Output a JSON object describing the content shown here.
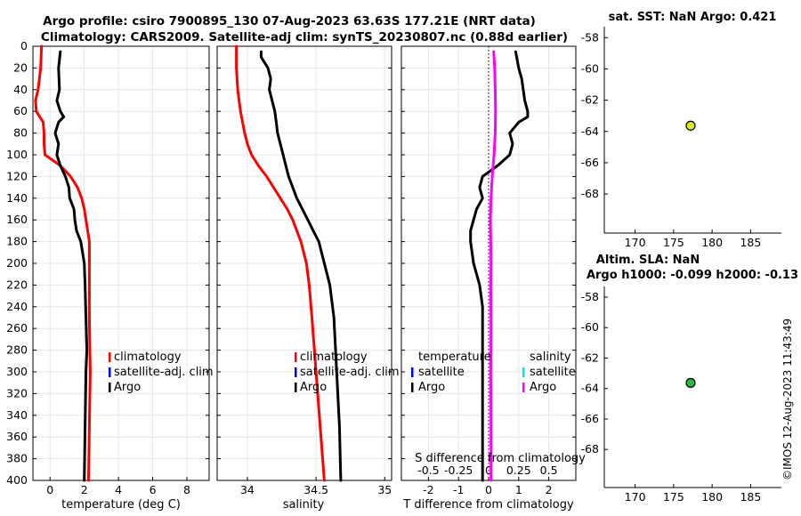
{
  "header": {
    "line1": "Argo profile: csiro 7900895_130 07-Aug-2023 63.63S 177.21E (NRT data)",
    "line2": "Climatology: CARS2009. Satellite-adj clim: synTS_20230807.nc (0.88d earlier)"
  },
  "watermark": "©IMOS 12-Aug-2023 11:43:49",
  "colors": {
    "climatology": "#ff0000",
    "satellite": "#0000ff",
    "argo": "#000000",
    "sat_cyan": "#00e5ff",
    "argo_magenta": "#ff00ff",
    "sst_marker": "#d8ec2a",
    "sla_marker": "#2cb54a"
  },
  "depth_ticks": [
    "0",
    "20",
    "40",
    "60",
    "80",
    "100",
    "120",
    "140",
    "160",
    "180",
    "200",
    "220",
    "240",
    "260",
    "280",
    "300",
    "320",
    "340",
    "360",
    "380",
    "400"
  ],
  "chart_data": [
    {
      "id": "temperature",
      "type": "line",
      "xlabel": "temperature (deg C)",
      "ylabel": "depth (dbar)",
      "xlim": [
        -1,
        9.3
      ],
      "ylim": [
        400,
        0
      ],
      "xticks": [
        0,
        2,
        4,
        6,
        8
      ],
      "xtick_labels": [
        "0",
        "2",
        "4",
        "6",
        "8"
      ],
      "legend": [
        "climatology",
        "satellite-adj. clim",
        "Argo"
      ],
      "series": [
        {
          "name": "climatology",
          "color": "#ff0000",
          "depth": [
            0,
            20,
            40,
            50,
            60,
            70,
            80,
            90,
            100,
            110,
            120,
            130,
            140,
            150,
            160,
            170,
            180,
            200,
            250,
            300,
            350,
            400
          ],
          "values": [
            -0.5,
            -0.55,
            -0.7,
            -0.85,
            -0.8,
            -0.4,
            -0.35,
            -0.35,
            -0.3,
            0.6,
            1.2,
            1.6,
            1.85,
            2.0,
            2.1,
            2.2,
            2.3,
            2.3,
            2.3,
            2.35,
            2.3,
            2.25
          ]
        },
        {
          "name": "Argo",
          "color": "#000000",
          "depth": [
            5,
            20,
            40,
            50,
            60,
            65,
            70,
            80,
            85,
            90,
            100,
            110,
            120,
            130,
            140,
            150,
            160,
            170,
            180,
            200,
            220,
            250,
            280,
            300,
            350,
            400
          ],
          "values": [
            0.6,
            0.5,
            0.55,
            0.4,
            0.6,
            0.8,
            0.5,
            0.3,
            0.4,
            0.5,
            0.4,
            0.6,
            0.9,
            1.1,
            1.15,
            1.4,
            1.45,
            1.55,
            1.8,
            2.0,
            2.05,
            2.1,
            2.15,
            2.1,
            2.05,
            2.0
          ]
        }
      ]
    },
    {
      "id": "salinity",
      "type": "line",
      "xlabel": "salinity",
      "xlim": [
        33.78,
        35.05
      ],
      "ylim": [
        400,
        0
      ],
      "xticks": [
        34,
        34.5,
        35
      ],
      "xtick_labels": [
        "34",
        "34.5",
        "35"
      ],
      "legend": [
        "climatology",
        "satellite-adj. clim",
        "Argo"
      ],
      "series": [
        {
          "name": "climatology",
          "color": "#ff0000",
          "depth": [
            0,
            20,
            40,
            60,
            80,
            90,
            100,
            110,
            120,
            130,
            140,
            150,
            160,
            170,
            180,
            190,
            200,
            220,
            250,
            300,
            350,
            400
          ],
          "values": [
            33.92,
            33.92,
            33.93,
            33.95,
            33.98,
            34.0,
            34.03,
            34.08,
            34.14,
            34.19,
            34.24,
            34.29,
            34.33,
            34.36,
            34.39,
            34.41,
            34.43,
            34.45,
            34.47,
            34.5,
            34.53,
            34.56
          ]
        },
        {
          "name": "Argo",
          "color": "#000000",
          "depth": [
            5,
            10,
            20,
            30,
            40,
            50,
            60,
            70,
            80,
            90,
            100,
            110,
            120,
            130,
            140,
            150,
            160,
            170,
            180,
            190,
            200,
            220,
            250,
            300,
            350,
            400
          ],
          "values": [
            34.1,
            34.1,
            34.15,
            34.17,
            34.16,
            34.18,
            34.2,
            34.21,
            34.22,
            34.24,
            34.26,
            34.28,
            34.3,
            34.33,
            34.36,
            34.4,
            34.44,
            34.48,
            34.52,
            34.54,
            34.56,
            34.6,
            34.63,
            34.65,
            34.67,
            34.68
          ]
        }
      ]
    },
    {
      "id": "difference",
      "type": "line",
      "xlabel": "T difference from climatology",
      "xlabel2": "S difference from climatology",
      "xlim": [
        -2.9,
        2.9
      ],
      "ylim": [
        400,
        0
      ],
      "xticks": [
        -2,
        -1,
        0,
        1,
        2
      ],
      "xtick_labels": [
        "-2",
        "-1",
        "0",
        "1",
        "2"
      ],
      "xticks2": [
        -0.5,
        -0.25,
        0,
        0.25,
        0.5
      ],
      "xtick2_labels": [
        "-0.5",
        "-0.25",
        "0",
        "0.25",
        "0.5"
      ],
      "legend_t_title": "temperature",
      "legend_t": [
        "satellite",
        "Argo"
      ],
      "legend_s_title": "salinity",
      "legend_s": [
        "satellite",
        "Argo"
      ],
      "series": [
        {
          "name": "T Argo - clim",
          "color": "#000000",
          "depth": [
            5,
            20,
            30,
            40,
            50,
            60,
            65,
            70,
            80,
            90,
            100,
            110,
            120,
            130,
            140,
            150,
            160,
            170,
            180,
            200,
            220,
            240,
            260,
            300,
            350,
            400
          ],
          "values": [
            0.9,
            1.0,
            1.1,
            1.15,
            1.2,
            1.3,
            1.3,
            1.0,
            0.7,
            0.8,
            0.7,
            0.3,
            -0.2,
            -0.3,
            -0.2,
            -0.4,
            -0.5,
            -0.6,
            -0.6,
            -0.5,
            -0.3,
            -0.2,
            -0.2,
            -0.2,
            -0.2,
            -0.2
          ]
        },
        {
          "name": "S Argo - clim",
          "color": "#ff00ff",
          "depth": [
            5,
            20,
            40,
            60,
            80,
            100,
            120,
            140,
            160,
            180,
            200,
            220,
            260,
            300,
            350,
            400
          ],
          "values": [
            0.17,
            0.2,
            0.22,
            0.23,
            0.22,
            0.18,
            0.12,
            0.08,
            0.06,
            0.07,
            0.08,
            0.07,
            0.08,
            0.07,
            0.08,
            0.08
          ]
        }
      ]
    },
    {
      "id": "sst_map",
      "type": "scatter",
      "title": "sat. SST: NaN Argo: 0.421",
      "xlim": [
        166,
        189
      ],
      "ylim": [
        -70.5,
        -57.3
      ],
      "xticks": [
        170,
        175,
        180,
        185
      ],
      "xtick_labels": [
        "170",
        "175",
        "180",
        "185"
      ],
      "yticks": [
        -58,
        -60,
        -62,
        -64,
        -66,
        -68
      ],
      "ytick_labels": [
        "-58",
        "-60",
        "-62",
        "-64",
        "-66",
        "-68"
      ],
      "points": [
        {
          "x": 177.21,
          "y": -63.63,
          "value": 0.421
        }
      ]
    },
    {
      "id": "sla_map",
      "type": "scatter",
      "title": "Altim. SLA: NaN",
      "subtitle": "Argo h1000: -0.099 h2000: -0.13",
      "xlim": [
        166,
        189
      ],
      "ylim": [
        -70.5,
        -57.3
      ],
      "xticks": [
        170,
        175,
        180,
        185
      ],
      "xtick_labels": [
        "170",
        "175",
        "180",
        "185"
      ],
      "yticks": [
        -58,
        -60,
        -62,
        -64,
        -66,
        -68
      ],
      "ytick_labels": [
        "-58",
        "-60",
        "-62",
        "-64",
        "-66",
        "-68"
      ],
      "points": [
        {
          "x": 177.21,
          "y": -63.63,
          "value": -0.099
        }
      ]
    }
  ]
}
